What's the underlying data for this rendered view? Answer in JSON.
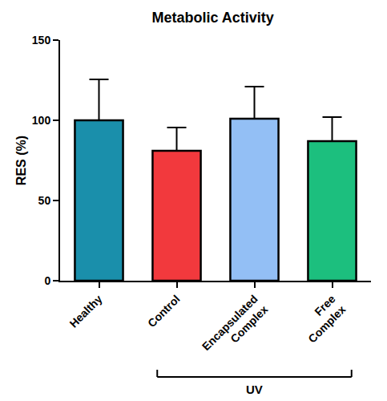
{
  "chart_data": {
    "type": "bar",
    "title": "Metabolic Activity",
    "y_label": "RES (%)",
    "categories": [
      "Healthy",
      "Control",
      "Encapsulated Complex",
      "Free Complex"
    ],
    "values": [
      100,
      81,
      101,
      87
    ],
    "errors": [
      25.5,
      14.5,
      20,
      15
    ],
    "colors": [
      "#1a8fab",
      "#f2393d",
      "#93bff5",
      "#1cbf7e"
    ],
    "ylim": [
      0,
      150
    ],
    "yticks": [
      0,
      50,
      100,
      150
    ],
    "grid": false,
    "annotations": [
      {
        "text": "UV",
        "from": "Control",
        "to": "Free Complex"
      }
    ]
  }
}
